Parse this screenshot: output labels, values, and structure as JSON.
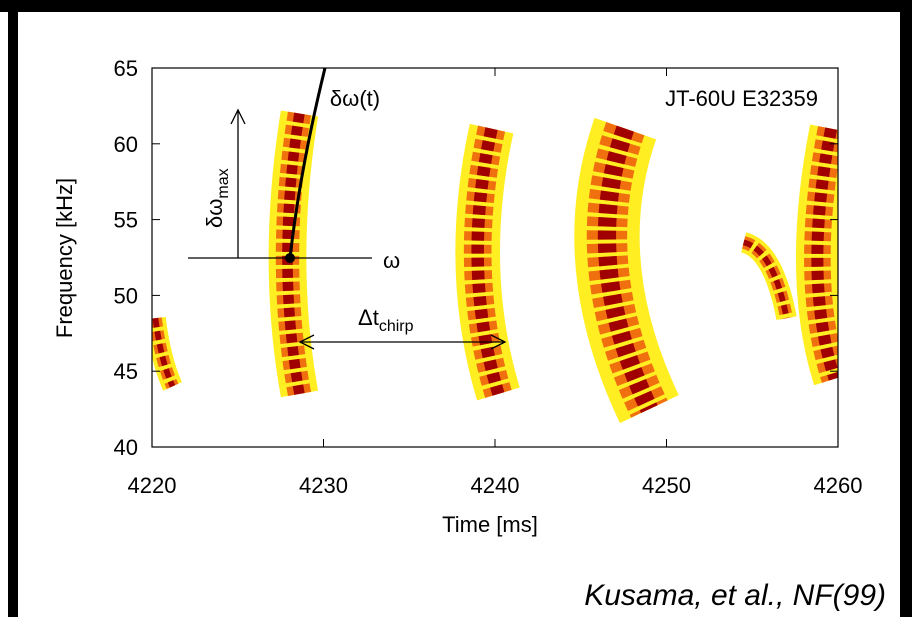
{
  "chart_data": {
    "type": "spectrogram",
    "xlabel": "Time [ms]",
    "ylabel": "Frequency [kHz]",
    "xlim": [
      4220,
      4260
    ],
    "ylim": [
      40,
      65
    ],
    "xticks": [
      4220,
      4230,
      4240,
      4250,
      4260
    ],
    "yticks": [
      40,
      45,
      50,
      55,
      60,
      65
    ],
    "colors": [
      "#ffee22",
      "#f07010",
      "#a00000"
    ],
    "bursts": [
      {
        "t_top": 4220.2,
        "t_mid": 4220.6,
        "t_bottom": 4221.2,
        "f_top": 48.5,
        "f_mid": 46,
        "f_bottom": 44,
        "width": 1.2
      },
      {
        "t_top": 4228.6,
        "t_mid": 4227.9,
        "t_bottom": 4228.6,
        "f_top": 62,
        "f_mid": 52.5,
        "f_bottom": 43.5,
        "width": 2.2
      },
      {
        "t_top": 4239.8,
        "t_mid": 4239.0,
        "t_bottom": 4240.2,
        "f_top": 61,
        "f_mid": 52,
        "f_bottom": 43.5,
        "width": 2.6
      },
      {
        "t_top": 4247.6,
        "t_mid": 4246.6,
        "t_bottom": 4249.0,
        "f_top": 61,
        "f_mid": 52,
        "f_bottom": 42.5,
        "width": 3.8
      },
      {
        "t_top": 4254.5,
        "t_mid": 4256.0,
        "t_bottom": 4257.0,
        "f_top": 53.5,
        "f_mid": 52,
        "f_bottom": 48.5,
        "width": 1.2
      },
      {
        "t_top": 4259.6,
        "t_mid": 4258.8,
        "t_bottom": 4259.8,
        "f_top": 61,
        "f_mid": 52,
        "f_bottom": 44.5,
        "width": 2.5
      }
    ],
    "annotations": {
      "shot": "JT-60U E32359",
      "delta_omega_t": "δω(t)",
      "omega": "ω",
      "delta_omega_max": "δω",
      "delta_omega_max_sub": "max",
      "delta_t_chirp": "Δt",
      "delta_t_chirp_sub": "chirp"
    },
    "citation": "Kusama, et al., NF(99)"
  }
}
